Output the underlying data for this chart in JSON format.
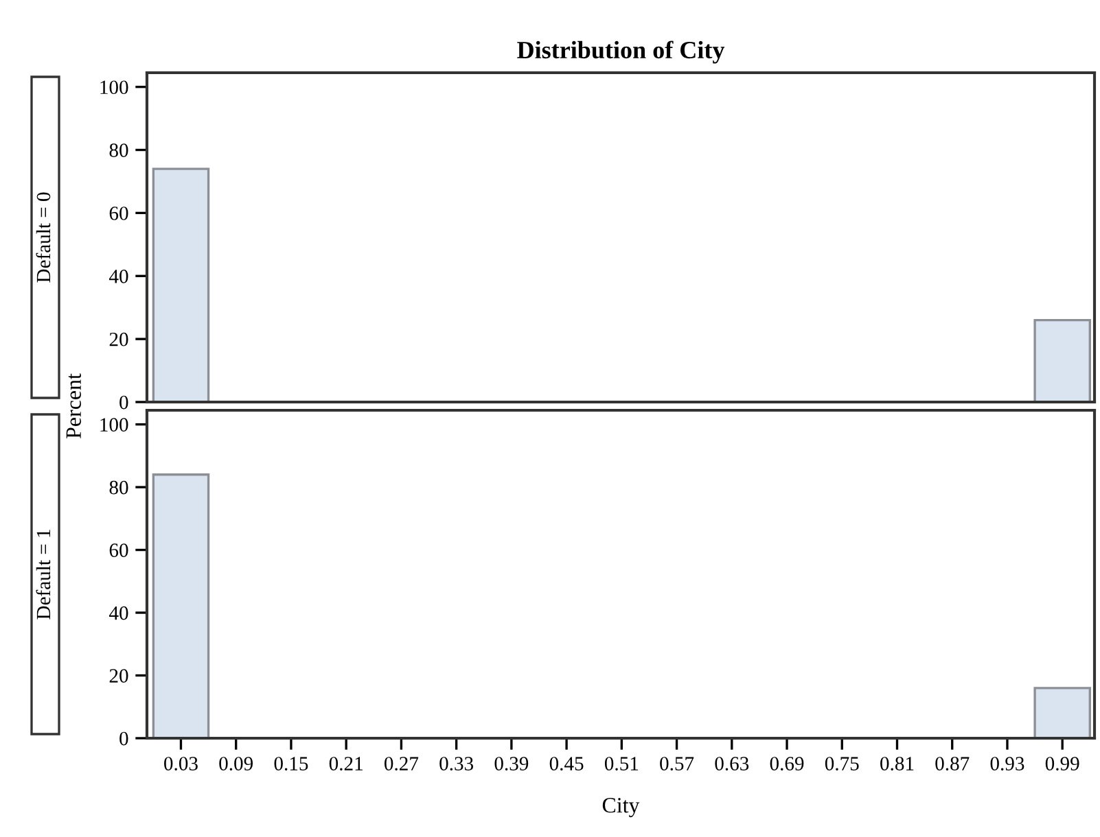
{
  "chart_data": [
    {
      "type": "histogram",
      "title": "Distribution of City",
      "ylabel": "Percent",
      "annotations": [
        "Default = 0"
      ],
      "bins": [
        0,
        0.06,
        0.12,
        0.18,
        0.24,
        0.3,
        0.36,
        0.42,
        0.48,
        0.54,
        0.6,
        0.66,
        0.72,
        0.78,
        0.84,
        0.9,
        0.96,
        1.02
      ],
      "values": [
        74,
        0,
        0,
        0,
        0,
        0,
        0,
        0,
        0,
        0,
        0,
        0,
        0,
        0,
        0,
        0,
        26
      ],
      "color": "#dae4f1",
      "xlim": [
        -0.007,
        1.025
      ],
      "ylim": [
        0,
        104.5
      ],
      "yticks": [
        0,
        20,
        40,
        60,
        80,
        100
      ],
      "tick_labels": "y",
      "grid": false,
      "legend": false
    },
    {
      "type": "histogram",
      "xlabel": "City",
      "annotations": [
        "Default = 1"
      ],
      "bins": [
        0,
        0.06,
        0.12,
        0.18,
        0.24,
        0.3,
        0.36,
        0.42,
        0.48,
        0.54,
        0.6,
        0.66,
        0.72,
        0.78,
        0.84,
        0.9,
        0.96,
        1.02
      ],
      "values": [
        84,
        0,
        0,
        0,
        0,
        0,
        0,
        0,
        0,
        0,
        0,
        0,
        0,
        0,
        0,
        0,
        16
      ],
      "color": "#dae4f1",
      "xlim": [
        -0.007,
        1.025
      ],
      "ylim": [
        0,
        104.5
      ],
      "xticks": [
        0.03,
        0.09,
        0.15,
        0.21,
        0.27,
        0.33,
        0.39,
        0.45,
        0.51,
        0.57,
        0.63,
        0.69,
        0.75,
        0.81,
        0.87,
        0.93,
        0.99
      ],
      "yticks": [
        0,
        20,
        40,
        60,
        80,
        100
      ],
      "grid": false,
      "legend": false
    }
  ]
}
